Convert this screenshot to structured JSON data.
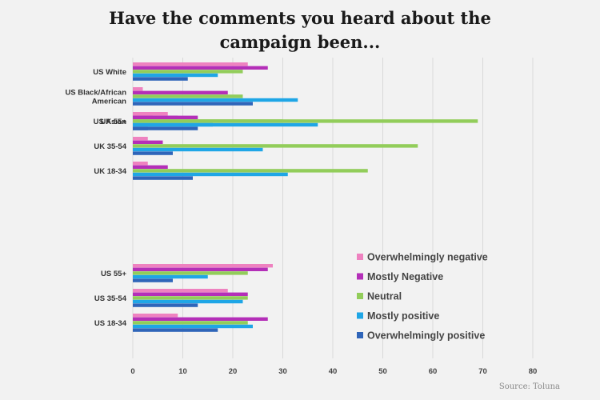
{
  "chart_data": {
    "type": "bar",
    "orientation": "horizontal",
    "title_lines": [
      "Have the comments you heard about the",
      "campaign been..."
    ],
    "categories": [
      "US White",
      "US Black/African American",
      "US Asian",
      "UK 55+",
      "UK 35-54",
      "UK 18-34",
      "US 55+",
      "US 35-54",
      "US 18-34"
    ],
    "category_label_lines": [
      [
        "US White"
      ],
      [
        "US Black/African",
        "American"
      ],
      [
        "US Asian"
      ],
      [
        "UK 55+"
      ],
      [
        "UK 35-54"
      ],
      [
        "UK 18-34"
      ],
      [
        "US 55+"
      ],
      [
        "US 35-54"
      ],
      [
        "US 18-34"
      ]
    ],
    "groups": [
      [
        "US White",
        "US Black/African American",
        "US Asian"
      ],
      [
        "UK 55+",
        "UK 35-54",
        "UK 18-34"
      ],
      [
        "US 55+",
        "US 35-54",
        "US 18-34"
      ]
    ],
    "series": [
      {
        "name": "Overwhelmingly negative",
        "color": "#ee82c0",
        "values": [
          23,
          2,
          7,
          4,
          3,
          3,
          28,
          19,
          9
        ]
      },
      {
        "name": "Mostly Negative",
        "color": "#b42fb8",
        "values": [
          27,
          19,
          13,
          9,
          6,
          7,
          27,
          23,
          27
        ]
      },
      {
        "name": "Neutral",
        "color": "#92cd5a",
        "values": [
          22,
          22,
          30,
          69,
          57,
          47,
          23,
          23,
          23
        ]
      },
      {
        "name": "Mostly positive",
        "color": "#1fa6e6",
        "values": [
          17,
          33,
          37,
          16,
          26,
          31,
          15,
          22,
          24
        ]
      },
      {
        "name": "Overwhelmingly positive",
        "color": "#2f65b9",
        "values": [
          11,
          24,
          13,
          3,
          8,
          12,
          8,
          13,
          17
        ]
      }
    ],
    "xlim": [
      0,
      80
    ],
    "xticks": [
      0,
      10,
      20,
      30,
      40,
      50,
      60,
      70,
      80
    ],
    "grid": true,
    "legend_position": "bottom-right"
  },
  "source": "Source: Toluna"
}
